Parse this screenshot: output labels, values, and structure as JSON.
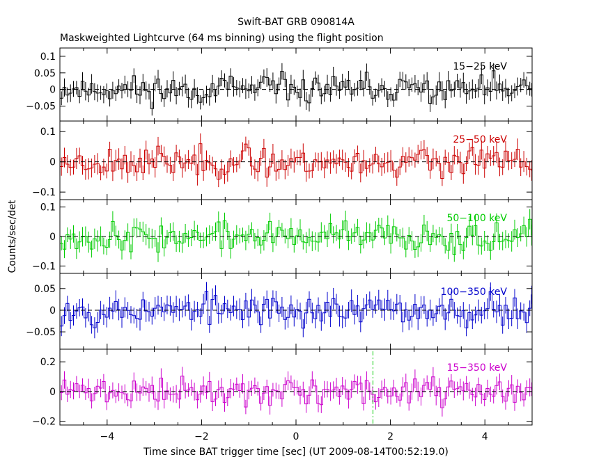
{
  "chart_data": {
    "type": "line",
    "title": "Swift-BAT GRB 090814A",
    "subtitle": "Maskweighted Lightcurve (64 ms binning) using the flight position",
    "xlabel": "Time since BAT trigger time [sec] (UT 2009-08-14T00:52:19.0)",
    "ylabel": "Counts/sec/det",
    "xlim": [
      -5,
      5
    ],
    "x_ticks": [
      -4,
      -2,
      0,
      2,
      4
    ],
    "x_tick_labels": [
      "−4",
      "−2",
      "0",
      "2",
      "4"
    ],
    "bin_width_sec": 0.064,
    "marker_line": {
      "x": 1.63,
      "color": "#00cc00"
    },
    "panels": [
      {
        "band": "15−25 keV",
        "color": "#000000",
        "ylim": [
          -0.095,
          0.125
        ],
        "y_ticks": [
          -0.05,
          0,
          0.05,
          0.1
        ],
        "y_tick_labels": [
          "−0.05",
          "0",
          "0.05",
          "0.1"
        ],
        "amplitude": 0.03,
        "error": 0.025,
        "seed": 11
      },
      {
        "band": "25−50 keV",
        "color": "#cc0000",
        "ylim": [
          -0.125,
          0.135
        ],
        "y_ticks": [
          -0.1,
          0,
          0.1
        ],
        "y_tick_labels": [
          "−0.1",
          "0",
          "0.1"
        ],
        "amplitude": 0.035,
        "error": 0.03,
        "seed": 23
      },
      {
        "band": "50−100 keV",
        "color": "#00cc00",
        "ylim": [
          -0.125,
          0.125
        ],
        "y_ticks": [
          -0.1,
          0,
          0.1
        ],
        "y_tick_labels": [
          "−0.1",
          "0",
          "0.1"
        ],
        "amplitude": 0.035,
        "error": 0.03,
        "seed": 37
      },
      {
        "band": "100−350 keV",
        "color": "#0000cc",
        "ylim": [
          -0.09,
          0.085
        ],
        "y_ticks": [
          -0.05,
          0,
          0.05
        ],
        "y_tick_labels": [
          "−0.05",
          "0",
          "0.05"
        ],
        "amplitude": 0.025,
        "error": 0.022,
        "seed": 53
      },
      {
        "band": "15−350 keV",
        "color": "#cc00cc",
        "ylim": [
          -0.225,
          0.285
        ],
        "y_ticks": [
          -0.2,
          0,
          0.2
        ],
        "y_tick_labels": [
          "−0.2",
          "0",
          "0.2"
        ],
        "amplitude": 0.065,
        "error": 0.055,
        "seed": 71
      }
    ]
  }
}
